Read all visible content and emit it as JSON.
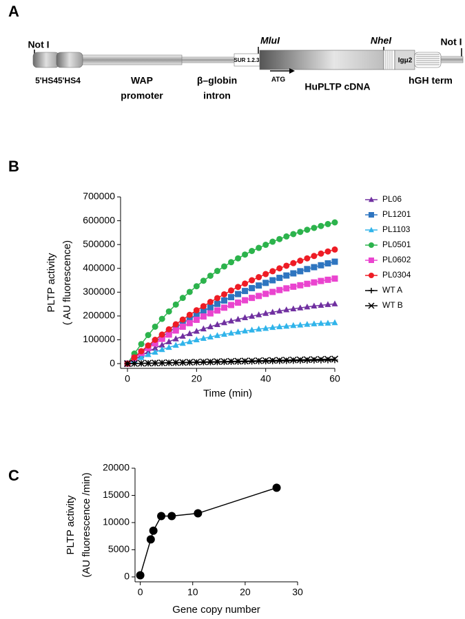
{
  "panel_labels": [
    "A",
    "B",
    "C"
  ],
  "diagram": {
    "not_i_left": "Not I",
    "not_i_right": "Not I",
    "mlu": "MluI",
    "nhe": "NheI",
    "sur": "SUR 1.2.3",
    "igmu": "Igμ2",
    "atg": "ATG",
    "hs": "5'HS45'HS4",
    "wap": [
      "WAP",
      "promoter"
    ],
    "globin": [
      "β–globin",
      "intron"
    ],
    "cdna": "HuPLTP cDNA",
    "hgh": "hGH term"
  },
  "chart_data": [
    {
      "type": "line",
      "xlabel": "Time (min)",
      "ylabel": [
        "PLTP activity",
        "( AU fluorescence)"
      ],
      "x": [
        0,
        2,
        4,
        6,
        8,
        10,
        12,
        14,
        16,
        18,
        20,
        22,
        24,
        26,
        28,
        30,
        32,
        34,
        36,
        38,
        40,
        42,
        44,
        46,
        48,
        50,
        52,
        54,
        56,
        58,
        60
      ],
      "xlim": [
        -2,
        60
      ],
      "xticks": [
        0,
        20,
        40,
        60
      ],
      "ylim": [
        -20000,
        700000
      ],
      "yticks": [
        0,
        100000,
        200000,
        300000,
        400000,
        500000,
        600000,
        700000
      ],
      "series": [
        {
          "name": "PL06",
          "color": "#7030a0",
          "marker": "triangle",
          "values": [
            0,
            18000,
            34000,
            50000,
            65000,
            78000,
            92000,
            104000,
            115000,
            126000,
            136000,
            146000,
            155000,
            164000,
            172000,
            179000,
            186000,
            193000,
            199000,
            205000,
            211000,
            216000,
            221000,
            226000,
            230000,
            234000,
            238000,
            242000,
            245000,
            248000,
            251000
          ]
        },
        {
          "name": "PL1201",
          "color": "#2e75c0",
          "marker": "square",
          "values": [
            0,
            24000,
            48000,
            71000,
            92000,
            113000,
            133000,
            152000,
            170000,
            188000,
            205000,
            221000,
            236000,
            251000,
            265000,
            279000,
            292000,
            305000,
            317000,
            328000,
            339000,
            350000,
            360000,
            370000,
            379000,
            388000,
            397000,
            405000,
            413000,
            421000,
            428000
          ]
        },
        {
          "name": "PL1103",
          "color": "#30b4ea",
          "marker": "triangle",
          "values": [
            0,
            13000,
            26000,
            38000,
            48000,
            59000,
            68000,
            77000,
            85000,
            92000,
            100000,
            106000,
            112000,
            118000,
            123000,
            128000,
            133000,
            137000,
            141000,
            145000,
            148000,
            152000,
            155000,
            157000,
            160000,
            162000,
            165000,
            167000,
            169000,
            170000,
            172000
          ]
        },
        {
          "name": "PL0501",
          "color": "#2cb34c",
          "marker": "circle",
          "values": [
            0,
            42000,
            82000,
            120000,
            155000,
            188000,
            219000,
            248000,
            276000,
            301000,
            325000,
            348000,
            369000,
            389000,
            408000,
            426000,
            442000,
            458000,
            473000,
            486000,
            499000,
            512000,
            523000,
            534000,
            544000,
            553000,
            562000,
            570000,
            578000,
            586000,
            593000
          ]
        },
        {
          "name": "PL0602",
          "color": "#ea44cf",
          "marker": "square",
          "values": [
            0,
            23000,
            45000,
            66000,
            85000,
            104000,
            122000,
            139000,
            155000,
            170000,
            184000,
            198000,
            211000,
            223000,
            235000,
            246000,
            256000,
            266000,
            276000,
            284000,
            293000,
            301000,
            309000,
            316000,
            323000,
            329000,
            335000,
            341000,
            347000,
            352000,
            357000
          ]
        },
        {
          "name": "PL0304",
          "color": "#ee1c25",
          "marker": "circle",
          "values": [
            0,
            26000,
            52000,
            76000,
            100000,
            122000,
            144000,
            165000,
            185000,
            205000,
            224000,
            241000,
            259000,
            275000,
            291000,
            307000,
            322000,
            336000,
            350000,
            363000,
            376000,
            388000,
            400000,
            411000,
            422000,
            432000,
            442000,
            452000,
            462000,
            471000,
            479000
          ]
        },
        {
          "name": "WT A",
          "color": "#000000",
          "marker": "plus",
          "values": [
            0,
            500,
            1000,
            1500,
            2000,
            2500,
            3000,
            3500,
            4000,
            4500,
            5000,
            5500,
            6000,
            6500,
            7000,
            7500,
            8000,
            8500,
            9000,
            9500,
            10000,
            10500,
            11000,
            11500,
            12000,
            12500,
            13000,
            13500,
            14000,
            14500,
            15000
          ]
        },
        {
          "name": "WT B",
          "color": "#000000",
          "marker": "x",
          "values": [
            0,
            640,
            1280,
            1920,
            2560,
            3200,
            3840,
            4480,
            5120,
            5760,
            6400,
            7040,
            7680,
            8320,
            8960,
            9600,
            10240,
            10880,
            11520,
            12160,
            12800,
            13440,
            14080,
            14720,
            15360,
            16000,
            16640,
            17280,
            17920,
            18560,
            19200
          ]
        }
      ]
    },
    {
      "type": "line",
      "xlabel": "Gene copy number",
      "ylabel": [
        "PLTP activity",
        "(AU fluorescence /min)"
      ],
      "x": [
        0,
        2,
        2.5,
        4,
        6,
        11,
        26
      ],
      "values": [
        300,
        6900,
        8500,
        11200,
        11200,
        11700,
        16400
      ],
      "color": "#000000",
      "marker": "circle",
      "xlim": [
        -1,
        30
      ],
      "xticks": [
        0,
        10,
        20,
        30
      ],
      "ylim": [
        -900,
        20000
      ],
      "yticks": [
        0,
        5000,
        10000,
        15000,
        20000
      ]
    }
  ]
}
